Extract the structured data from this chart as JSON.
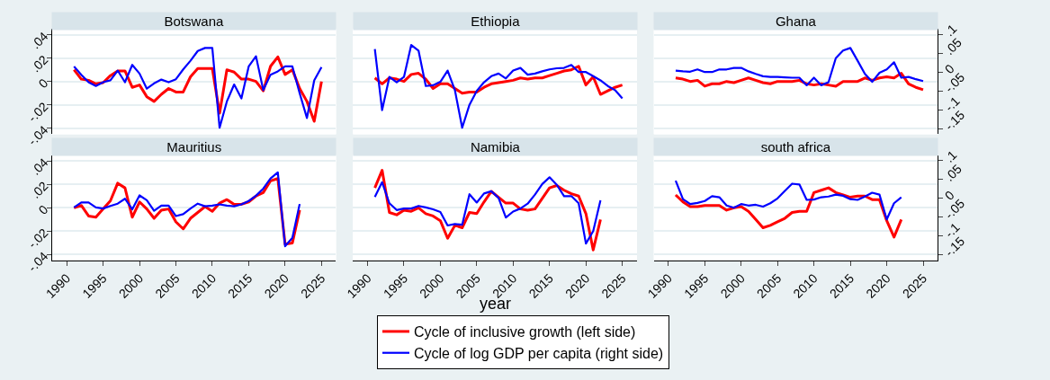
{
  "chart_data": [
    {
      "type": "line",
      "title": "Botswana",
      "x": [
        1991,
        1992,
        1993,
        1994,
        1995,
        1996,
        1997,
        1998,
        1999,
        2000,
        2001,
        2002,
        2003,
        2004,
        2005,
        2006,
        2007,
        2008,
        2009,
        2010,
        2011,
        2012,
        2013,
        2014,
        2015,
        2016,
        2017,
        2018,
        2019,
        2020,
        2021,
        2022,
        2023,
        2024,
        2025
      ],
      "xlim": [
        1988,
        2027
      ],
      "ylim": [
        -0.045,
        0.045
      ],
      "yticks": [
        {
          "value": -0.04,
          "label": "-.04"
        },
        {
          "value": -0.02,
          "label": "-.02"
        },
        {
          "value": 0,
          "label": "0"
        },
        {
          "value": 0.02,
          "label": ".02"
        },
        {
          "value": 0.04,
          "label": ".04"
        }
      ],
      "y2lim": [
        -0.165,
        0.115
      ],
      "grid": "y",
      "tick_labels": [
        "y"
      ],
      "legend": "bottom",
      "series": [
        {
          "name": "Cycle of inclusive growth (left side)",
          "color": "#ff0000",
          "values": [
            0.01,
            0.002,
            0.001,
            -0.002,
            -0.001,
            0.005,
            0.009,
            0.009,
            -0.005,
            -0.003,
            -0.013,
            -0.017,
            -0.011,
            -0.006,
            -0.009,
            -0.009,
            0.004,
            0.011,
            0.011,
            0.011,
            -0.027,
            0.01,
            0.008,
            0.002,
            0.002,
            0,
            -0.008,
            0.013,
            0.021,
            0.006,
            0.01,
            -0.006,
            -0.017,
            -0.034,
            0
          ]
        },
        {
          "name": "Cycle of log GDP per capita (right side)",
          "color": "#0000ff",
          "axis": "y2",
          "values": [
            0.015,
            -0.007,
            -0.027,
            -0.037,
            -0.027,
            -0.022,
            0.004,
            -0.027,
            0.019,
            -0.004,
            -0.044,
            -0.03,
            -0.02,
            -0.027,
            -0.019,
            0.007,
            0.03,
            0.056,
            0.064,
            0.064,
            -0.148,
            -0.078,
            -0.033,
            -0.07,
            0.015,
            0.042,
            -0.048,
            -0.007,
            0.002,
            0.015,
            0.015,
            -0.056,
            -0.122,
            -0.022,
            0.013
          ]
        }
      ]
    },
    {
      "type": "line",
      "title": "Ethiopia",
      "x": [
        1991,
        1992,
        1993,
        1994,
        1995,
        1996,
        1997,
        1998,
        1999,
        2000,
        2001,
        2002,
        2003,
        2004,
        2005,
        2006,
        2007,
        2008,
        2009,
        2010,
        2011,
        2012,
        2013,
        2014,
        2015,
        2016,
        2017,
        2018,
        2019,
        2020,
        2021,
        2022,
        2023,
        2024,
        2025
      ],
      "xlim": [
        1988,
        2027
      ],
      "ylim": [
        -0.045,
        0.045
      ],
      "y2lim": [
        -0.165,
        0.115
      ],
      "grid": "y",
      "tick_labels": false,
      "series": [
        {
          "color": "#ff0000",
          "values": [
            0.003,
            -0.002,
            0.003,
            0.002,
            0,
            0.006,
            0.007,
            0.002,
            -0.006,
            -0.002,
            -0.002,
            -0.006,
            -0.01,
            -0.009,
            -0.009,
            -0.005,
            -0.002,
            -0.001,
            0,
            0.001,
            0.003,
            0.002,
            0.003,
            0.003,
            0.005,
            0.007,
            0.009,
            0.01,
            0.013,
            -0.003,
            0.004,
            -0.011,
            -0.008,
            -0.005,
            -0.003
          ]
        },
        {
          "color": "#0000ff",
          "axis": "y2",
          "values": [
            0.061,
            -0.101,
            -0.013,
            -0.027,
            -0.013,
            0.072,
            0.057,
            -0.037,
            -0.035,
            -0.026,
            0.004,
            -0.048,
            -0.148,
            -0.087,
            -0.05,
            -0.027,
            -0.011,
            -0.004,
            -0.017,
            0.004,
            0.011,
            -0.007,
            -0.004,
            0.002,
            0.007,
            0.01,
            0.011,
            0.019,
            0,
            0,
            -0.011,
            -0.022,
            -0.037,
            -0.048,
            -0.07
          ]
        }
      ]
    },
    {
      "type": "line",
      "title": "Ghana",
      "x": [
        1991,
        1992,
        1993,
        1994,
        1995,
        1996,
        1997,
        1998,
        1999,
        2000,
        2001,
        2002,
        2003,
        2004,
        2005,
        2006,
        2007,
        2008,
        2009,
        2010,
        2011,
        2012,
        2013,
        2014,
        2015,
        2016,
        2017,
        2018,
        2019,
        2020,
        2021,
        2022,
        2023,
        2024,
        2025
      ],
      "xlim": [
        1988,
        2027
      ],
      "ylim": [
        -0.045,
        0.045
      ],
      "y2lim": [
        -0.165,
        0.115
      ],
      "y2ticks": [
        {
          "value": -0.15,
          "label": "-.15"
        },
        {
          "value": -0.1,
          "label": "-.1"
        },
        {
          "value": -0.05,
          "label": "-.05"
        },
        {
          "value": 0,
          "label": "0"
        },
        {
          "value": 0.05,
          "label": ".05"
        },
        {
          "value": 0.1,
          "label": ".1"
        }
      ],
      "grid": "y",
      "tick_labels": [
        "y2"
      ],
      "series": [
        {
          "color": "#ff0000",
          "values": [
            0.003,
            0.002,
            0,
            0.001,
            -0.004,
            -0.002,
            -0.002,
            0,
            -0.001,
            0.001,
            0.003,
            0.001,
            -0.001,
            -0.002,
            0,
            0,
            0,
            0.001,
            -0.002,
            -0.003,
            -0.002,
            -0.003,
            -0.004,
            0,
            0,
            0,
            0.003,
            0.001,
            0.003,
            0.004,
            0.003,
            0.007,
            -0.002,
            -0.005,
            -0.007
          ]
        },
        {
          "color": "#0000ff",
          "axis": "y2",
          "values": [
            0.004,
            0.002,
            0.001,
            0.007,
            0,
            0,
            0.007,
            0.007,
            0.011,
            0.011,
            0.002,
            -0.005,
            -0.011,
            -0.013,
            -0.013,
            -0.014,
            -0.015,
            -0.015,
            -0.035,
            -0.015,
            -0.035,
            -0.027,
            0.037,
            0.057,
            0.064,
            0.03,
            -0.005,
            -0.026,
            -0.002,
            0.007,
            0.026,
            -0.015,
            -0.013,
            -0.019,
            -0.024
          ]
        }
      ]
    },
    {
      "type": "line",
      "title": "Mauritius",
      "x": [
        1991,
        1992,
        1993,
        1994,
        1995,
        1996,
        1997,
        1998,
        1999,
        2000,
        2001,
        2002,
        2003,
        2004,
        2005,
        2006,
        2007,
        2008,
        2009,
        2010,
        2011,
        2012,
        2013,
        2014,
        2015,
        2016,
        2017,
        2018,
        2019,
        2020,
        2021,
        2022
      ],
      "xlim": [
        1988,
        2027
      ],
      "xticks": [
        1990,
        1995,
        2000,
        2005,
        2010,
        2015,
        2020,
        2025
      ],
      "ylim": [
        -0.045,
        0.045
      ],
      "yticks": [
        {
          "value": -0.04,
          "label": "-.04"
        },
        {
          "value": -0.02,
          "label": "-.02"
        },
        {
          "value": 0,
          "label": "0"
        },
        {
          "value": 0.02,
          "label": ".02"
        },
        {
          "value": 0.04,
          "label": ".04"
        }
      ],
      "y2lim": [
        -0.165,
        0.115
      ],
      "grid": "y",
      "tick_labels": [
        "x",
        "y"
      ],
      "series": [
        {
          "color": "#ff0000",
          "values": [
            0,
            0.002,
            -0.007,
            -0.008,
            -0.001,
            0.006,
            0.021,
            0.017,
            -0.008,
            0.005,
            -0.001,
            -0.009,
            -0.002,
            -0.001,
            -0.012,
            -0.018,
            -0.009,
            -0.004,
            0.001,
            -0.003,
            0.004,
            0.007,
            0.003,
            0.003,
            0.005,
            0.01,
            0.013,
            0.023,
            0.025,
            -0.031,
            -0.03,
            -0.002
          ]
        },
        {
          "color": "#0000ff",
          "axis": "y2",
          "values": [
            -0.024,
            -0.011,
            -0.011,
            -0.024,
            -0.027,
            -0.02,
            -0.014,
            -0.001,
            -0.029,
            0.008,
            -0.005,
            -0.033,
            -0.019,
            -0.019,
            -0.047,
            -0.042,
            -0.027,
            -0.014,
            -0.021,
            -0.019,
            -0.016,
            -0.019,
            -0.021,
            -0.016,
            -0.007,
            0.007,
            0.026,
            0.053,
            0.069,
            -0.127,
            -0.105,
            -0.015
          ]
        }
      ]
    },
    {
      "type": "line",
      "title": "Namibia",
      "xlabel": "year",
      "x": [
        1991,
        1992,
        1993,
        1994,
        1995,
        1996,
        1997,
        1998,
        1999,
        2000,
        2001,
        2002,
        2003,
        2004,
        2005,
        2006,
        2007,
        2008,
        2009,
        2010,
        2011,
        2012,
        2013,
        2014,
        2015,
        2016,
        2017,
        2018,
        2019,
        2020,
        2021,
        2022
      ],
      "xlim": [
        1988,
        2027
      ],
      "xticks": [
        1990,
        1995,
        2000,
        2005,
        2010,
        2015,
        2020,
        2025
      ],
      "ylim": [
        -0.045,
        0.045
      ],
      "y2lim": [
        -0.165,
        0.115
      ],
      "grid": "y",
      "tick_labels": [
        "x"
      ],
      "series": [
        {
          "color": "#ff0000",
          "values": [
            0.017,
            0.032,
            -0.004,
            -0.006,
            -0.002,
            -0.003,
            0,
            -0.005,
            -0.007,
            -0.011,
            -0.026,
            -0.015,
            -0.017,
            -0.004,
            -0.005,
            0.005,
            0.014,
            0.009,
            0.004,
            0.004,
            -0.001,
            -0.002,
            -0.001,
            0.008,
            0.017,
            0.019,
            0.015,
            0.012,
            0.01,
            -0.005,
            -0.036,
            -0.01
          ]
        },
        {
          "color": "#0000ff",
          "axis": "y2",
          "values": [
            0.004,
            0.043,
            -0.013,
            -0.031,
            -0.027,
            -0.027,
            -0.02,
            -0.024,
            -0.029,
            -0.036,
            -0.072,
            -0.068,
            -0.07,
            0.011,
            -0.011,
            0.013,
            0.019,
            0.001,
            -0.051,
            -0.035,
            -0.027,
            -0.014,
            0.01,
            0.038,
            0.056,
            0.036,
            0.006,
            0.006,
            -0.013,
            -0.12,
            -0.087,
            -0.005
          ]
        }
      ]
    },
    {
      "type": "line",
      "title": "south africa",
      "x": [
        1991,
        1992,
        1993,
        1994,
        1995,
        1996,
        1997,
        1998,
        1999,
        2000,
        2001,
        2002,
        2003,
        2004,
        2005,
        2006,
        2007,
        2008,
        2009,
        2010,
        2011,
        2012,
        2013,
        2014,
        2015,
        2016,
        2017,
        2018,
        2019,
        2020,
        2021,
        2022
      ],
      "xlim": [
        1988,
        2027
      ],
      "xticks": [
        1990,
        1995,
        2000,
        2005,
        2010,
        2015,
        2020,
        2025
      ],
      "ylim": [
        -0.045,
        0.045
      ],
      "y2lim": [
        -0.165,
        0.115
      ],
      "y2ticks": [
        {
          "value": -0.15,
          "label": "-.15"
        },
        {
          "value": -0.1,
          "label": "-.1"
        },
        {
          "value": -0.05,
          "label": "-.05"
        },
        {
          "value": 0,
          "label": "0"
        },
        {
          "value": 0.05,
          "label": ".05"
        },
        {
          "value": 0.1,
          "label": ".1"
        }
      ],
      "grid": "y",
      "tick_labels": [
        "x",
        "y2"
      ],
      "series": [
        {
          "color": "#ff0000",
          "values": [
            0.011,
            0.005,
            0.001,
            0.001,
            0.002,
            0.002,
            0.002,
            -0.002,
            0,
            0.001,
            -0.003,
            -0.01,
            -0.017,
            -0.015,
            -0.012,
            -0.009,
            -0.004,
            -0.003,
            -0.003,
            0.013,
            0.015,
            0.017,
            0.013,
            0.011,
            0.009,
            0.01,
            0.01,
            0.007,
            0.007,
            -0.011,
            -0.025,
            -0.01
          ]
        },
        {
          "color": "#0000ff",
          "axis": "y2",
          "values": [
            0.047,
            -0.002,
            -0.015,
            -0.012,
            -0.007,
            0.006,
            0.003,
            -0.019,
            -0.025,
            -0.015,
            -0.019,
            -0.017,
            -0.022,
            -0.013,
            0,
            0.02,
            0.039,
            0.037,
            -0.004,
            -0.003,
            0.003,
            0.005,
            0.01,
            0.007,
            -0.002,
            -0.004,
            0.005,
            0.015,
            0.01,
            -0.056,
            -0.013,
            0.003
          ]
        }
      ]
    }
  ]
}
